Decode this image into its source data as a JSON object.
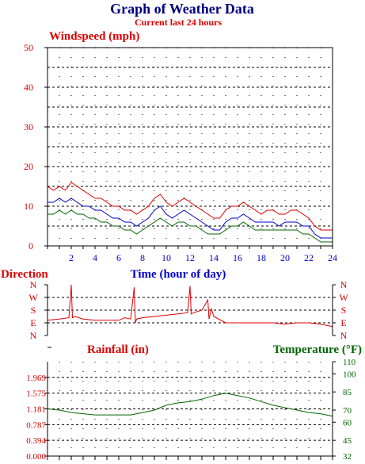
{
  "header": {
    "title": "Graph of Weather Data",
    "subtitle": "Current last 24 hours"
  },
  "chart_data": [
    {
      "type": "line",
      "title": "Windspeed (mph)",
      "xlabel": "Time (hour of day)",
      "xlim": [
        0,
        24
      ],
      "ylim": [
        0,
        50
      ],
      "grid": true,
      "x_ticks": [
        "2",
        "4",
        "6",
        "8",
        "10",
        "12",
        "14",
        "16",
        "18",
        "20",
        "22",
        "24"
      ],
      "y_ticks": [
        "0",
        "10",
        "20",
        "30",
        "40",
        "50"
      ],
      "series": [
        {
          "color": "#dd0000",
          "x": [
            0,
            0.5,
            1,
            1.5,
            2,
            2.5,
            3,
            3.5,
            4,
            4.5,
            5,
            5.5,
            6,
            6.5,
            7,
            7.5,
            8,
            8.5,
            9,
            9.5,
            10,
            10.5,
            11,
            11.5,
            12,
            12.5,
            13,
            13.5,
            14,
            14.5,
            15,
            15.5,
            16,
            16.5,
            17,
            17.5,
            18,
            18.5,
            19,
            19.5,
            20,
            20.5,
            21,
            21.5,
            22,
            22.5,
            23,
            23.5,
            24
          ],
          "values": [
            15,
            14,
            15,
            14,
            16,
            15,
            14,
            13,
            12,
            12,
            11,
            10,
            10,
            9,
            9,
            8,
            9,
            10,
            12,
            13,
            11,
            10,
            11,
            12,
            11,
            10,
            9,
            8,
            7,
            7,
            9,
            10,
            10,
            11,
            10,
            9,
            8,
            9,
            9,
            8,
            8,
            9,
            9,
            8,
            7,
            5,
            4,
            4,
            4
          ]
        },
        {
          "color": "#0000cc",
          "x": [
            0,
            0.5,
            1,
            1.5,
            2,
            2.5,
            3,
            3.5,
            4,
            4.5,
            5,
            5.5,
            6,
            6.5,
            7,
            7.5,
            8,
            8.5,
            9,
            9.5,
            10,
            10.5,
            11,
            11.5,
            12,
            12.5,
            13,
            13.5,
            14,
            14.5,
            15,
            15.5,
            16,
            16.5,
            17,
            17.5,
            18,
            18.5,
            19,
            19.5,
            20,
            20.5,
            21,
            21.5,
            22,
            22.5,
            23,
            23.5,
            24
          ],
          "values": [
            11,
            11,
            12,
            11,
            12,
            11,
            10,
            10,
            9,
            9,
            8,
            7,
            7,
            6,
            6,
            5,
            6,
            7,
            9,
            10,
            8,
            7,
            8,
            9,
            8,
            7,
            6,
            5,
            4,
            4,
            6,
            7,
            7,
            8,
            7,
            6,
            6,
            6,
            6,
            5,
            6,
            6,
            6,
            5,
            5,
            3,
            2,
            2,
            2
          ]
        },
        {
          "color": "#006600",
          "x": [
            0,
            0.5,
            1,
            1.5,
            2,
            2.5,
            3,
            3.5,
            4,
            4.5,
            5,
            5.5,
            6,
            6.5,
            7,
            7.5,
            8,
            8.5,
            9,
            9.5,
            10,
            10.5,
            11,
            11.5,
            12,
            12.5,
            13,
            13.5,
            14,
            14.5,
            15,
            15.5,
            16,
            16.5,
            17,
            17.5,
            18,
            18.5,
            19,
            19.5,
            20,
            20.5,
            21,
            21.5,
            22,
            22.5,
            23,
            23.5,
            24
          ],
          "values": [
            8,
            8,
            9,
            8,
            9,
            8,
            8,
            7,
            7,
            6,
            6,
            5,
            5,
            4,
            4,
            3,
            4,
            5,
            6,
            7,
            6,
            5,
            6,
            6,
            5,
            5,
            4,
            3,
            3,
            3,
            4,
            5,
            5,
            6,
            5,
            4,
            4,
            4,
            4,
            4,
            4,
            4,
            4,
            3,
            3,
            2,
            1,
            1,
            1
          ]
        }
      ]
    },
    {
      "type": "line",
      "title": "Direction",
      "xlim": [
        0,
        24
      ],
      "y_categories": [
        "N",
        "W",
        "S",
        "E",
        "N"
      ],
      "ylim": [
        0,
        4
      ],
      "grid": true,
      "series": [
        {
          "color": "#dd0000",
          "x": [
            0,
            1,
            1.8,
            2,
            2.1,
            2.3,
            3,
            4,
            5,
            6,
            6.5,
            7,
            7.3,
            7.4,
            7.5,
            8,
            9,
            10,
            11,
            11.8,
            12,
            12.1,
            12.3,
            13,
            13.5,
            13.6,
            13.8,
            14,
            15,
            16,
            17,
            18,
            19,
            20,
            21,
            22,
            23,
            24
          ],
          "values": [
            1.2,
            1.3,
            1.4,
            4.0,
            1.4,
            1.5,
            1.3,
            1.2,
            1.2,
            1.2,
            1.4,
            1.3,
            3.8,
            1.0,
            1.3,
            1.4,
            1.5,
            1.6,
            1.7,
            1.8,
            3.9,
            1.7,
            1.8,
            2.0,
            2.8,
            1.3,
            2.1,
            1.5,
            1.0,
            1.0,
            1.0,
            1.0,
            1.0,
            0.9,
            1.0,
            1.0,
            0.9,
            0.7
          ]
        }
      ]
    },
    {
      "type": "line",
      "title": "Rainfall (in)",
      "y2label": "Temperature (°F)",
      "xlim": [
        0,
        24
      ],
      "ylim": [
        0,
        2.362
      ],
      "y2lim": [
        32,
        110
      ],
      "grid": true,
      "y_ticks": [
        "0.000",
        "0.394",
        "0.787",
        "1.181",
        "1.575",
        "1.969"
      ],
      "y2_ticks": [
        "32",
        "45",
        "60",
        "70",
        "85",
        "100",
        "110"
      ],
      "series": [
        {
          "color": "#006600",
          "axis": "y2",
          "x": [
            0,
            1,
            2,
            3,
            4,
            5,
            6,
            7,
            8,
            9,
            10,
            11,
            12,
            13,
            14,
            15,
            16,
            17,
            18,
            19,
            20,
            21,
            22,
            23,
            24
          ],
          "values": [
            71,
            70,
            68,
            67,
            66,
            66,
            66,
            66,
            68,
            70,
            74,
            76,
            77,
            79,
            82,
            84,
            82,
            80,
            77,
            74,
            72,
            70,
            68,
            67,
            65
          ]
        }
      ]
    }
  ]
}
